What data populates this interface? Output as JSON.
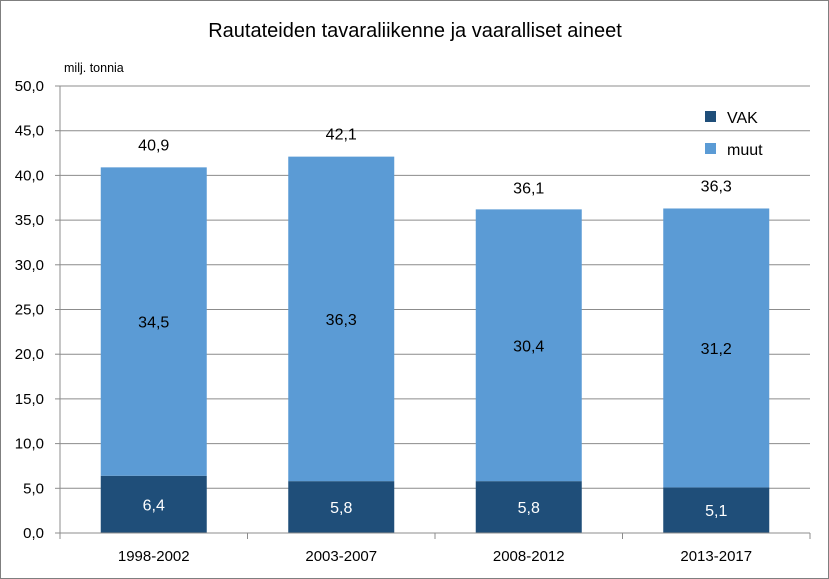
{
  "chart_data": {
    "type": "bar",
    "stacked": true,
    "title": "Rautateiden tavaraliikenne ja vaaralliset aineet",
    "unit_label": "milj. tonnia",
    "categories": [
      "1998-2002",
      "2003-2007",
      "2008-2012",
      "2013-2017"
    ],
    "series": [
      {
        "name": "VAK",
        "values": [
          6.4,
          5.8,
          5.8,
          5.1
        ],
        "labels": [
          "6,4",
          "5,8",
          "5,8",
          "5,1"
        ],
        "color": "#1f4e79"
      },
      {
        "name": "muut",
        "values": [
          34.5,
          36.3,
          30.4,
          31.2
        ],
        "labels": [
          "34,5",
          "36,3",
          "30,4",
          "31,2"
        ],
        "color": "#5b9bd5"
      }
    ],
    "totals": [
      40.9,
      42.1,
      36.1,
      36.3
    ],
    "total_labels": [
      "40,9",
      "42,1",
      "36,1",
      "36,3"
    ],
    "ylim": [
      0,
      50
    ],
    "ytick_values": [
      0,
      5,
      10,
      15,
      20,
      25,
      30,
      35,
      40,
      45,
      50
    ],
    "ytick_labels": [
      "0,0",
      "5,0",
      "10,0",
      "15,0",
      "20,0",
      "25,0",
      "30,0",
      "35,0",
      "40,0",
      "45,0",
      "50,0"
    ],
    "grid": true,
    "legend_position": "top-right"
  }
}
